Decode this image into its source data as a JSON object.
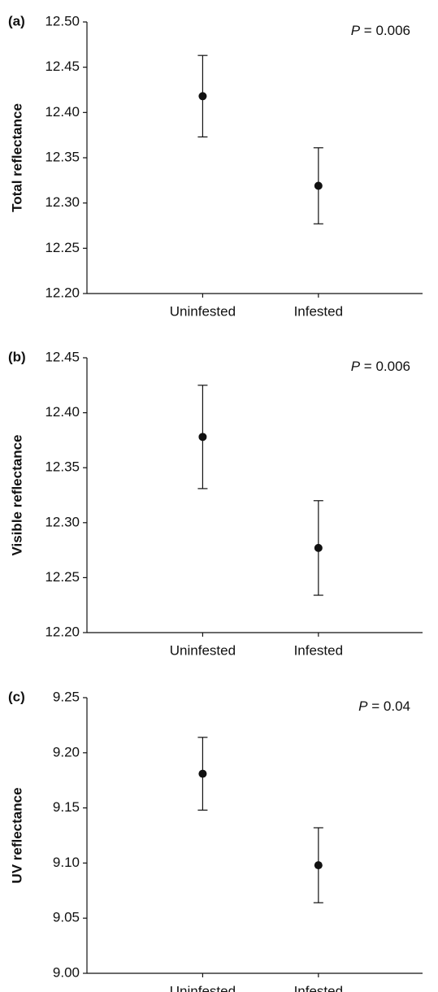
{
  "chart_data": [
    {
      "type": "errorbar",
      "panel_label": "(a)",
      "y_label": "Total reflectance",
      "annotation_italic": "P",
      "annotation": "= 0.006",
      "categories": [
        "Uninfested",
        "Infested"
      ],
      "values": [
        12.418,
        12.319
      ],
      "errors": [
        0.045,
        0.042
      ],
      "color": "#111111",
      "ylim": [
        12.2,
        12.5
      ],
      "yticks": [
        {
          "value": 12.2,
          "label": "12.20"
        },
        12.25,
        {
          "value": 12.3,
          "label": "12.30"
        },
        12.35,
        {
          "value": 12.4,
          "label": "12.40"
        },
        12.45,
        {
          "value": 12.5,
          "label": "12.50"
        }
      ]
    },
    {
      "type": "errorbar",
      "panel_label": "(b)",
      "y_label": "Visible reflectance",
      "annotation_italic": "P",
      "annotation": "= 0.006",
      "categories": [
        "Uninfested",
        "Infested"
      ],
      "values": [
        12.378,
        12.277
      ],
      "errors": [
        0.047,
        0.043
      ],
      "color": "#111111",
      "ylim": [
        12.2,
        12.45
      ],
      "yticks": [
        {
          "value": 12.2,
          "label": "12.20"
        },
        12.25,
        {
          "value": 12.3,
          "label": "12.30"
        },
        12.35,
        {
          "value": 12.4,
          "label": "12.40"
        },
        12.45
      ]
    },
    {
      "type": "errorbar",
      "panel_label": "(c)",
      "y_label": "UV reflectance",
      "annotation_italic": "P",
      "annotation": "= 0.04",
      "categories": [
        "Uninfested",
        "Infested"
      ],
      "values": [
        9.181,
        9.098
      ],
      "errors": [
        0.033,
        0.034
      ],
      "color": "#111111",
      "ylim": [
        9.0,
        9.25
      ],
      "yticks": [
        {
          "value": 9.0,
          "label": "9.00"
        },
        9.05,
        {
          "value": 9.1,
          "label": "9.10"
        },
        9.15,
        {
          "value": 9.2,
          "label": "9.20"
        },
        9.25
      ]
    }
  ]
}
